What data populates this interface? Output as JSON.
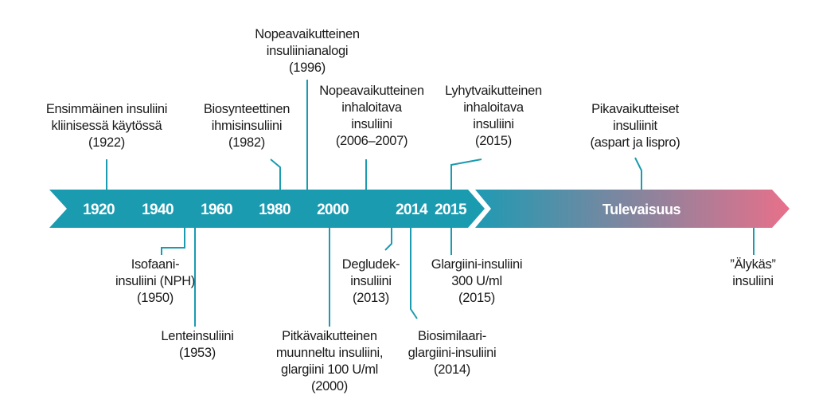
{
  "timeline": {
    "years": [
      "1920",
      "1940",
      "1960",
      "1980",
      "2000",
      "2014",
      "2015"
    ],
    "future_label": "Tulevaisuus",
    "colors": {
      "band": "#1a9bb0",
      "future_start": "#1f9ab3",
      "future_end": "#e8708a",
      "connector": "#1a9bb0",
      "year_text": "#ffffff"
    }
  },
  "events_above": [
    {
      "lines": [
        "Ensimmäinen insuliini",
        "kliinisessä käytössä",
        "(1922)"
      ]
    },
    {
      "lines": [
        "Biosynteettinen",
        "ihmisinsuliini",
        "(1982)"
      ]
    },
    {
      "lines": [
        "Nopeavaikutteinen",
        "insuliinianalogi",
        "(1996)"
      ]
    },
    {
      "lines": [
        "Nopeavaikutteinen",
        "inhaloitava",
        "insuliini",
        "(2006–2007)"
      ]
    },
    {
      "lines": [
        "Lyhytvaikutteinen",
        "inhaloitava",
        "insuliini",
        "(2015)"
      ]
    },
    {
      "lines": [
        "Pikavaikutteiset",
        "insuliinit",
        "(aspart ja lispro)"
      ]
    }
  ],
  "events_below": [
    {
      "lines": [
        "Isofaani-",
        "insuliini (NPH)",
        "(1950)"
      ]
    },
    {
      "lines": [
        "Lenteinsuliini",
        "(1953)"
      ]
    },
    {
      "lines": [
        "Pitkävaikutteinen",
        "muunneltu insuliini,",
        "glargiini 100 U/ml",
        "(2000)"
      ]
    },
    {
      "lines": [
        "Degludek-",
        "insuliini",
        "(2013)"
      ]
    },
    {
      "lines": [
        "Biosimilaari-",
        "glargiini-insuliini",
        "(2014)"
      ]
    },
    {
      "lines": [
        "Glargiini-insuliini",
        "300 U/ml",
        "(2015)"
      ]
    },
    {
      "lines": [
        "”Älykäs”",
        "insuliini"
      ]
    }
  ]
}
